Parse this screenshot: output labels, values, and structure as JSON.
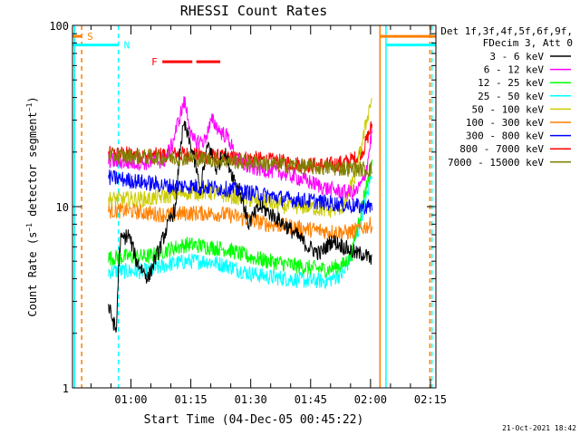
{
  "chart_data": {
    "type": "line",
    "title": "RHESSI Count Rates",
    "xlabel": "Start Time (04-Dec-05 00:45:22)",
    "ylabel": "Count Rate (s⁻¹ detector segment⁻¹)",
    "ylabel_parts": {
      "main": "Count Rate (s",
      "exp1": "−1",
      "mid": " detector segment",
      "exp2": "−1",
      "close": ")"
    },
    "yscale": "log",
    "ylim": [
      1,
      100
    ],
    "xlim_minutes": [
      0,
      91
    ],
    "x_tick_labels": [
      "01:00",
      "01:15",
      "01:30",
      "01:45",
      "02:00",
      "02:15"
    ],
    "x_tick_minutes": [
      14.63,
      29.63,
      44.63,
      59.63,
      74.63,
      89.63
    ],
    "y_tick_labels": [
      "1",
      "10",
      "100"
    ],
    "y_tick_values": [
      1,
      10,
      100
    ],
    "legend_header": [
      "Det 1f,3f,4f,5f,6f,9f,",
      "FDecim 3, Att 0"
    ],
    "legend_position": "right",
    "grid": false,
    "timestamp": "21-Oct-2021 18:42",
    "series": [
      {
        "name": "3 - 6 keV",
        "color": "#000000",
        "points": [
          [
            9,
            2.8
          ],
          [
            11,
            2.0
          ],
          [
            12,
            6.5
          ],
          [
            14,
            7.0
          ],
          [
            16,
            5.0
          ],
          [
            19,
            4.0
          ],
          [
            22,
            6.0
          ],
          [
            26,
            10.0
          ],
          [
            27,
            22.0
          ],
          [
            28,
            28.0
          ],
          [
            30,
            20.0
          ],
          [
            32,
            12.0
          ],
          [
            34,
            22.0
          ],
          [
            36,
            16.0
          ],
          [
            38,
            20.0
          ],
          [
            40,
            15.0
          ],
          [
            42,
            12.0
          ],
          [
            44,
            8.0
          ],
          [
            47,
            10.0
          ],
          [
            50,
            9.0
          ],
          [
            53,
            8.0
          ],
          [
            56,
            7.0
          ],
          [
            59,
            6.0
          ],
          [
            62,
            5.5
          ],
          [
            65,
            6.5
          ],
          [
            68,
            6.0
          ],
          [
            71,
            5.5
          ],
          [
            73,
            5.5
          ],
          [
            75,
            5.0
          ]
        ]
      },
      {
        "name": "6 - 12 keV",
        "color": "#ff00ff",
        "points": [
          [
            9,
            18.0
          ],
          [
            14,
            17.5
          ],
          [
            19,
            17.5
          ],
          [
            23,
            18.0
          ],
          [
            25,
            22.0
          ],
          [
            27,
            32.0
          ],
          [
            28,
            38.0
          ],
          [
            30,
            23.0
          ],
          [
            33,
            23.0
          ],
          [
            35,
            30.0
          ],
          [
            37,
            26.0
          ],
          [
            39,
            24.0
          ],
          [
            41,
            18.0
          ],
          [
            44,
            16.5
          ],
          [
            48,
            16.0
          ],
          [
            52,
            15.5
          ],
          [
            56,
            14.5
          ],
          [
            60,
            13.5
          ],
          [
            64,
            12.5
          ],
          [
            68,
            12.0
          ],
          [
            71,
            12.0
          ],
          [
            73,
            14.0
          ],
          [
            74,
            18.0
          ],
          [
            75,
            26.0
          ]
        ]
      },
      {
        "name": "12 - 25 keV",
        "color": "#00ff00",
        "points": [
          [
            9,
            5.2
          ],
          [
            14,
            5.3
          ],
          [
            19,
            5.3
          ],
          [
            24,
            5.8
          ],
          [
            29,
            6.2
          ],
          [
            34,
            6.0
          ],
          [
            39,
            5.8
          ],
          [
            44,
            5.3
          ],
          [
            49,
            5.0
          ],
          [
            54,
            4.8
          ],
          [
            59,
            4.6
          ],
          [
            64,
            4.5
          ],
          [
            68,
            4.8
          ],
          [
            70,
            5.5
          ],
          [
            72,
            9.0
          ],
          [
            74,
            14.0
          ],
          [
            75,
            18.0
          ]
        ]
      },
      {
        "name": "25 - 50 keV",
        "color": "#00ffff",
        "points": [
          [
            9,
            4.4
          ],
          [
            14,
            4.4
          ],
          [
            19,
            4.4
          ],
          [
            24,
            4.8
          ],
          [
            29,
            5.0
          ],
          [
            34,
            5.0
          ],
          [
            39,
            4.7
          ],
          [
            44,
            4.3
          ],
          [
            49,
            4.1
          ],
          [
            54,
            4.0
          ],
          [
            59,
            3.9
          ],
          [
            64,
            3.9
          ],
          [
            68,
            4.3
          ],
          [
            70,
            5.5
          ],
          [
            72,
            8.0
          ],
          [
            74,
            12.0
          ],
          [
            75,
            16.0
          ]
        ]
      },
      {
        "name": "50 - 100 keV",
        "color": "#cccc00",
        "points": [
          [
            9,
            11.0
          ],
          [
            14,
            11.0
          ],
          [
            19,
            11.0
          ],
          [
            24,
            11.5
          ],
          [
            29,
            12.0
          ],
          [
            34,
            12.0
          ],
          [
            39,
            11.5
          ],
          [
            44,
            11.0
          ],
          [
            49,
            10.5
          ],
          [
            54,
            10.0
          ],
          [
            59,
            10.0
          ],
          [
            64,
            9.5
          ],
          [
            68,
            10.0
          ],
          [
            71,
            15.0
          ],
          [
            73,
            25.0
          ],
          [
            75,
            40.0
          ]
        ]
      },
      {
        "name": "100 - 300 keV",
        "color": "#ff8000",
        "points": [
          [
            9,
            9.5
          ],
          [
            14,
            9.5
          ],
          [
            19,
            9.2
          ],
          [
            24,
            9.0
          ],
          [
            29,
            9.2
          ],
          [
            34,
            9.2
          ],
          [
            39,
            9.0
          ],
          [
            44,
            8.5
          ],
          [
            49,
            8.0
          ],
          [
            54,
            7.8
          ],
          [
            59,
            7.5
          ],
          [
            64,
            7.3
          ],
          [
            69,
            7.2
          ],
          [
            72,
            7.5
          ],
          [
            75,
            8.0
          ]
        ]
      },
      {
        "name": "300 - 800 keV",
        "color": "#0000ff",
        "points": [
          [
            9,
            14.5
          ],
          [
            14,
            14.0
          ],
          [
            19,
            13.5
          ],
          [
            24,
            13.0
          ],
          [
            29,
            13.0
          ],
          [
            34,
            12.8
          ],
          [
            39,
            12.5
          ],
          [
            44,
            12.0
          ],
          [
            49,
            11.5
          ],
          [
            54,
            11.0
          ],
          [
            59,
            10.8
          ],
          [
            64,
            10.5
          ],
          [
            69,
            10.2
          ],
          [
            72,
            10.0
          ],
          [
            75,
            10.0
          ]
        ]
      },
      {
        "name": "800 - 7000 keV",
        "color": "#ff0000",
        "points": [
          [
            9,
            19.5
          ],
          [
            14,
            19.5
          ],
          [
            19,
            19.0
          ],
          [
            24,
            19.5
          ],
          [
            29,
            19.5
          ],
          [
            34,
            19.0
          ],
          [
            39,
            18.5
          ],
          [
            44,
            18.5
          ],
          [
            49,
            18.0
          ],
          [
            54,
            17.5
          ],
          [
            59,
            17.0
          ],
          [
            64,
            17.0
          ],
          [
            68,
            17.5
          ],
          [
            71,
            18.5
          ],
          [
            73,
            21.0
          ],
          [
            75,
            28.0
          ]
        ]
      },
      {
        "name": "7000 - 15000 keV",
        "color": "#808000",
        "points": [
          [
            9,
            19.0
          ],
          [
            30,
            18.5
          ],
          [
            60,
            16.5
          ],
          [
            75,
            16.0
          ]
        ]
      }
    ],
    "flags": [
      {
        "label": "S",
        "color": "#ff8000",
        "y_value": 87,
        "x_range": [
          0,
          2.3
        ],
        "x_range_2": [
          77,
          91
        ]
      },
      {
        "label": "N",
        "color": "#00ffff",
        "y_value": 78,
        "x_range": [
          0,
          11.5
        ],
        "x_range_2": [
          78.5,
          91
        ]
      },
      {
        "label": "F",
        "color": "#ff0000",
        "y_value": 63,
        "x_range": [
          22.5,
          30
        ],
        "x_range_2": [
          31,
          37
        ]
      }
    ],
    "vertical_markers": [
      {
        "color": "#00ffff",
        "style": "solid",
        "x_minute": 0.5
      },
      {
        "color": "#ff8000",
        "style": "dashed",
        "x_minute": 2.3
      },
      {
        "color": "#00ffff",
        "style": "dashed",
        "x_minute": 11.5
      },
      {
        "color": "#ff8000",
        "style": "solid",
        "x_minute": 77
      },
      {
        "color": "#00ffff",
        "style": "solid",
        "x_minute": 78.5
      },
      {
        "color": "#ff8000",
        "style": "dashed",
        "x_minute": 89.5
      },
      {
        "color": "#00ffff",
        "style": "dashed",
        "x_minute": 90
      }
    ]
  }
}
